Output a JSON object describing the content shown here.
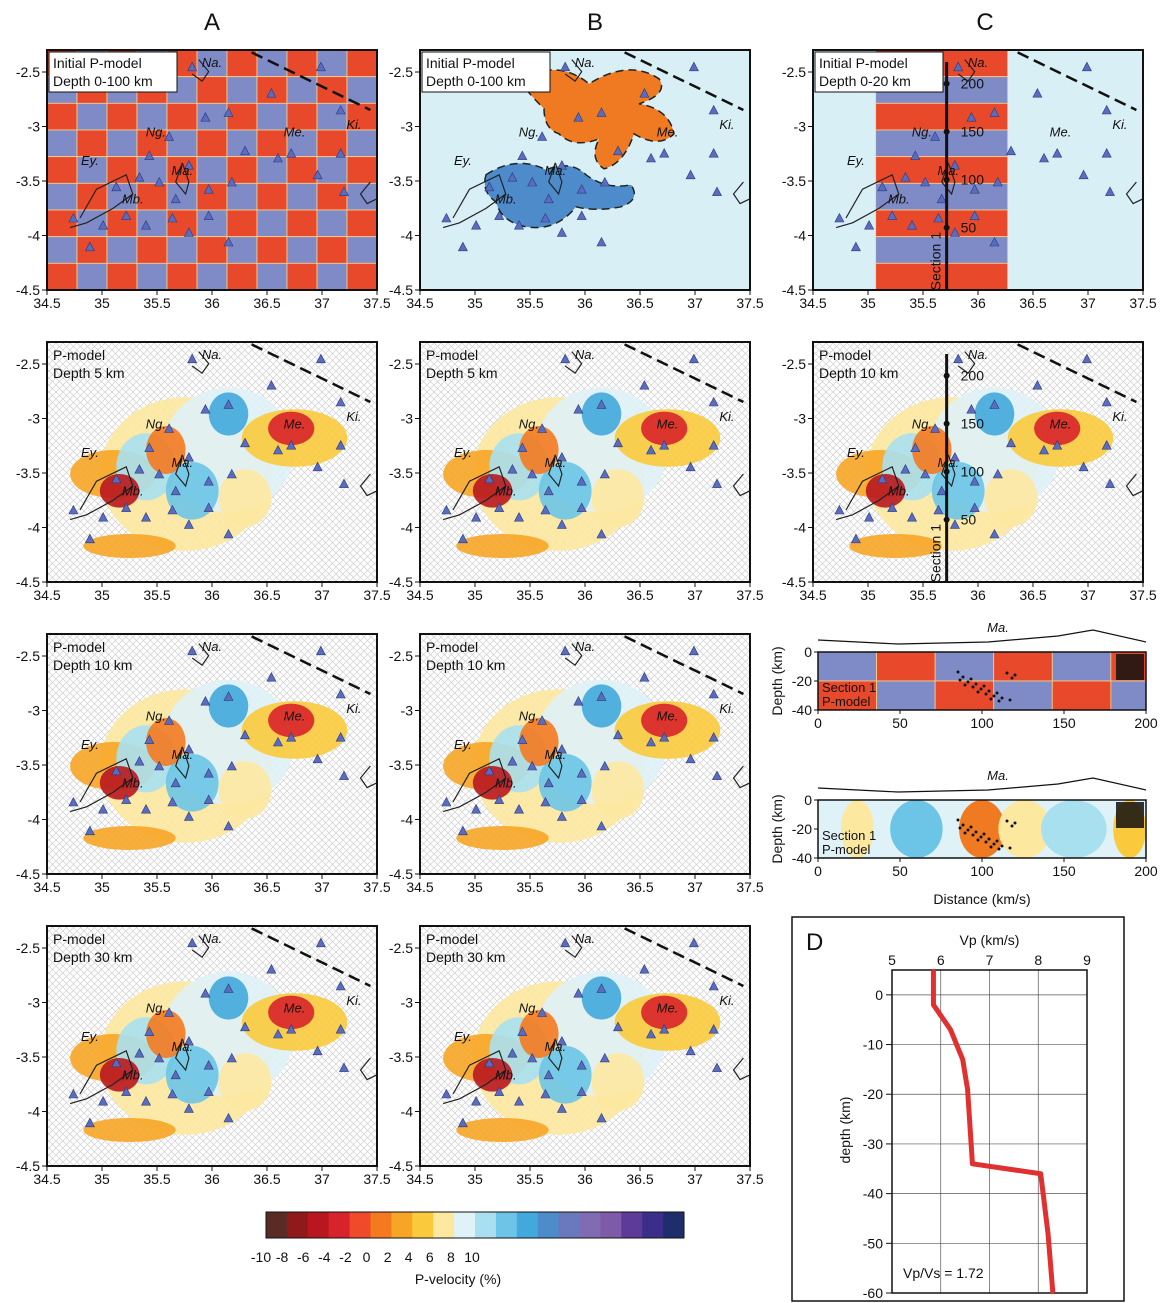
{
  "column_labels": [
    "A",
    "B",
    "C"
  ],
  "panel_d_label": "D",
  "map_axes": {
    "lon_ticks": [
      "34.5",
      "35",
      "35.5",
      "36",
      "36.5",
      "37",
      "37.5"
    ],
    "lat_ticks": [
      "-2.5",
      "-3",
      "-3.5",
      "-4",
      "-4.5"
    ]
  },
  "place_names": [
    "Na.",
    "Ng.",
    "Ey.",
    "Ma.",
    "Mb.",
    "Me.",
    "Ki."
  ],
  "panels": [
    {
      "id": "A1",
      "line1": "Initial P-model",
      "line2": "Depth 0-100 km",
      "kind": "checker"
    },
    {
      "id": "B1",
      "line1": "Initial P-model",
      "line2": "Depth 0-100 km",
      "kind": "blobs"
    },
    {
      "id": "C1",
      "line1": "Initial P-model",
      "line2": "Depth 0-20 km",
      "kind": "stripes"
    },
    {
      "id": "A2",
      "line1": "P-model",
      "line2": "Depth 5 km",
      "kind": "result"
    },
    {
      "id": "B2",
      "line1": "P-model",
      "line2": "Depth 5 km",
      "kind": "result"
    },
    {
      "id": "C2",
      "line1": "P-model",
      "line2": "Depth 10 km",
      "kind": "result"
    },
    {
      "id": "A3",
      "line1": "P-model",
      "line2": "Depth 10 km",
      "kind": "result"
    },
    {
      "id": "B3",
      "line1": "P-model",
      "line2": "Depth 10 km",
      "kind": "result"
    },
    {
      "id": "A4",
      "line1": "P-model",
      "line2": "Depth 30 km",
      "kind": "result"
    },
    {
      "id": "B4",
      "line1": "P-model",
      "line2": "Depth 30 km",
      "kind": "result"
    }
  ],
  "section_profile": {
    "section_label": "Section 1",
    "distance_marks": [
      "200",
      "150",
      "100",
      "50"
    ]
  },
  "sections": {
    "title_marker": "Ma.",
    "ylabel": "Depth (km)",
    "xlabel": "Distance (km/s)",
    "depth_ticks": [
      "0",
      "-20",
      "-40"
    ],
    "dist_ticks": [
      "0",
      "50",
      "100",
      "150",
      "200"
    ],
    "top_line1": "Section 1",
    "top_line2": "P-model",
    "bottom_line1": "Section 1",
    "bottom_line2": "P-model"
  },
  "colorbar": {
    "label": "P-velocity (%)",
    "ticks": [
      "-10",
      "-8",
      "-6",
      "-4",
      "-2",
      "0",
      "2",
      "4",
      "6",
      "8",
      "10"
    ],
    "colors": [
      "#5a2a25",
      "#8e1a1c",
      "#b8171f",
      "#d8232a",
      "#ef4a2a",
      "#f47a20",
      "#f7a526",
      "#fbca3c",
      "#fde8a0",
      "#dff2f7",
      "#a9e0f0",
      "#6cc5e6",
      "#43a8dc",
      "#4d8bcb",
      "#6a79bd",
      "#7f6cb2",
      "#7e5aa8",
      "#5d3b99",
      "#3b2e8a",
      "#1f2d6d"
    ]
  },
  "chart_data": [
    {
      "type": "line",
      "title": "D",
      "xlabel": "Vp (km/s)",
      "ylabel": "depth (km)",
      "xlim": [
        5,
        9
      ],
      "ylim": [
        -60,
        5
      ],
      "x_ticks": [
        5,
        6,
        7,
        8,
        9
      ],
      "y_ticks": [
        0,
        -10,
        -20,
        -30,
        -40,
        -50,
        -60
      ],
      "grid": true,
      "series": [
        {
          "values": [
            {
              "x": 5.85,
              "y": 5
            },
            {
              "x": 5.85,
              "y": -2
            },
            {
              "x": 6.2,
              "y": -7
            },
            {
              "x": 6.45,
              "y": -13
            },
            {
              "x": 6.55,
              "y": -19
            },
            {
              "x": 6.65,
              "y": -34
            },
            {
              "x": 8.05,
              "y": -36
            },
            {
              "x": 8.2,
              "y": -48
            },
            {
              "x": 8.3,
              "y": -60
            }
          ]
        }
      ],
      "annotations": [
        "Vp/Vs = 1.72"
      ],
      "color": "#e0302f"
    }
  ]
}
